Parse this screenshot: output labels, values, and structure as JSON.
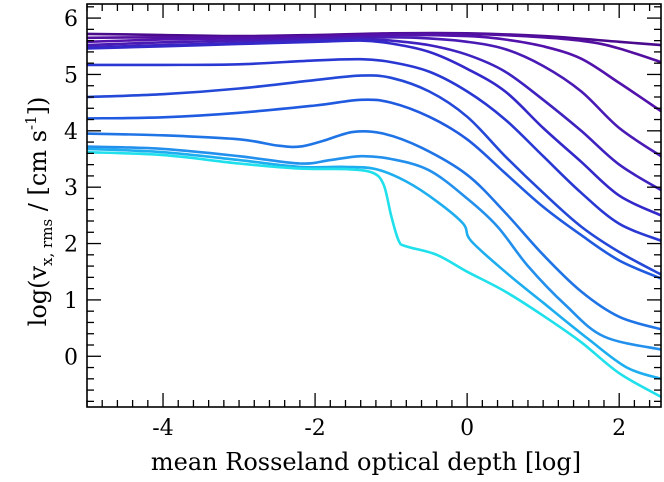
{
  "chart_data": {
    "type": "line",
    "xlabel": "mean Rosseland optical depth [log]",
    "ylabel": {
      "prefix": "log(v",
      "subscript": "x, rms",
      "middle": " / [cm s",
      "superscript": "-1",
      "suffix": "])"
    },
    "xlim": [
      -5,
      2.55
    ],
    "ylim": [
      -0.9,
      6.25
    ],
    "xticks": [
      -4,
      -2,
      0,
      2
    ],
    "yticks": [
      0,
      1,
      2,
      3,
      4,
      5,
      6
    ],
    "xtick_labels": [
      "-4",
      "-2",
      "0",
      "2"
    ],
    "ytick_labels": [
      "0",
      "1",
      "2",
      "3",
      "4",
      "5",
      "6"
    ],
    "x_minor_step": 0.2,
    "y_minor_step": 0.2,
    "grid": false,
    "series": [
      {
        "color": "#4a0a8e",
        "points": [
          [
            -5,
            5.72
          ],
          [
            -4,
            5.7
          ],
          [
            -3,
            5.68
          ],
          [
            -2,
            5.7
          ],
          [
            -1,
            5.73
          ],
          [
            0,
            5.73
          ],
          [
            1,
            5.68
          ],
          [
            2,
            5.58
          ],
          [
            2.55,
            5.52
          ]
        ]
      },
      {
        "color": "#530fa0",
        "points": [
          [
            -5,
            5.65
          ],
          [
            -4,
            5.66
          ],
          [
            -3,
            5.66
          ],
          [
            -2,
            5.68
          ],
          [
            -1,
            5.72
          ],
          [
            0,
            5.72
          ],
          [
            1,
            5.66
          ],
          [
            1.6,
            5.58
          ],
          [
            2,
            5.46
          ],
          [
            2.55,
            5.22
          ]
        ]
      },
      {
        "color": "#5212ab",
        "points": [
          [
            -5,
            5.58
          ],
          [
            -4,
            5.62
          ],
          [
            -3,
            5.64
          ],
          [
            -2,
            5.66
          ],
          [
            -1,
            5.7
          ],
          [
            0,
            5.68
          ],
          [
            0.5,
            5.62
          ],
          [
            1,
            5.5
          ],
          [
            1.5,
            5.28
          ],
          [
            2,
            4.85
          ],
          [
            2.55,
            4.35
          ]
        ]
      },
      {
        "color": "#4a1ab5",
        "points": [
          [
            -5,
            5.52
          ],
          [
            -4,
            5.57
          ],
          [
            -3,
            5.6
          ],
          [
            -2,
            5.63
          ],
          [
            -1,
            5.66
          ],
          [
            -0.5,
            5.64
          ],
          [
            0,
            5.58
          ],
          [
            0.5,
            5.45
          ],
          [
            1,
            5.15
          ],
          [
            1.5,
            4.7
          ],
          [
            2,
            4.05
          ],
          [
            2.55,
            3.55
          ]
        ]
      },
      {
        "color": "#3f22bf",
        "points": [
          [
            -5,
            5.48
          ],
          [
            -4,
            5.52
          ],
          [
            -3,
            5.56
          ],
          [
            -2,
            5.6
          ],
          [
            -1.4,
            5.62
          ],
          [
            -1,
            5.6
          ],
          [
            -0.5,
            5.52
          ],
          [
            0,
            5.35
          ],
          [
            0.5,
            5.05
          ],
          [
            1,
            4.55
          ],
          [
            1.5,
            4.0
          ],
          [
            2,
            3.4
          ],
          [
            2.55,
            2.95
          ]
        ]
      },
      {
        "color": "#3328c9",
        "points": [
          [
            -5,
            5.46
          ],
          [
            -4,
            5.5
          ],
          [
            -3,
            5.54
          ],
          [
            -2,
            5.58
          ],
          [
            -1.4,
            5.6
          ],
          [
            -1,
            5.55
          ],
          [
            -0.5,
            5.4
          ],
          [
            0,
            5.1
          ],
          [
            0.5,
            4.7
          ],
          [
            1,
            4.05
          ],
          [
            1.5,
            3.45
          ],
          [
            2,
            2.85
          ],
          [
            2.55,
            2.5
          ]
        ]
      },
      {
        "color": "#2a38d3",
        "points": [
          [
            -5,
            5.17
          ],
          [
            -4,
            5.17
          ],
          [
            -3,
            5.18
          ],
          [
            -2,
            5.25
          ],
          [
            -1.4,
            5.27
          ],
          [
            -1,
            5.22
          ],
          [
            -0.5,
            5.05
          ],
          [
            0,
            4.7
          ],
          [
            0.5,
            4.2
          ],
          [
            1,
            3.55
          ],
          [
            1.5,
            2.9
          ],
          [
            2,
            2.35
          ],
          [
            2.55,
            2.05
          ]
        ]
      },
      {
        "color": "#2448d8",
        "points": [
          [
            -5,
            4.6
          ],
          [
            -4,
            4.65
          ],
          [
            -3,
            4.75
          ],
          [
            -2,
            4.9
          ],
          [
            -1.4,
            4.98
          ],
          [
            -1,
            4.94
          ],
          [
            -0.5,
            4.7
          ],
          [
            0,
            4.25
          ],
          [
            0.5,
            3.55
          ],
          [
            1,
            2.9
          ],
          [
            1.5,
            2.3
          ],
          [
            2,
            1.85
          ],
          [
            2.55,
            1.45
          ]
        ]
      },
      {
        "color": "#1f5ae0",
        "points": [
          [
            -5,
            4.22
          ],
          [
            -4,
            4.24
          ],
          [
            -3,
            4.32
          ],
          [
            -2,
            4.45
          ],
          [
            -1.4,
            4.55
          ],
          [
            -1,
            4.5
          ],
          [
            -0.5,
            4.25
          ],
          [
            0,
            3.85
          ],
          [
            0.5,
            3.25
          ],
          [
            1,
            2.65
          ],
          [
            1.5,
            2.15
          ],
          [
            2,
            1.7
          ],
          [
            2.55,
            1.38
          ]
        ]
      },
      {
        "color": "#1f74e6",
        "points": [
          [
            -5,
            3.95
          ],
          [
            -4,
            3.92
          ],
          [
            -3,
            3.85
          ],
          [
            -2.5,
            3.74
          ],
          [
            -2.2,
            3.72
          ],
          [
            -1.9,
            3.82
          ],
          [
            -1.5,
            3.98
          ],
          [
            -1.1,
            3.95
          ],
          [
            -0.6,
            3.7
          ],
          [
            0,
            3.22
          ],
          [
            0.5,
            2.55
          ],
          [
            1,
            1.8
          ],
          [
            1.5,
            1.15
          ],
          [
            2,
            0.7
          ],
          [
            2.55,
            0.48
          ]
        ]
      },
      {
        "color": "#2290ec",
        "points": [
          [
            -5,
            3.72
          ],
          [
            -4,
            3.68
          ],
          [
            -3,
            3.55
          ],
          [
            -2.2,
            3.42
          ],
          [
            -1.8,
            3.48
          ],
          [
            -1.4,
            3.55
          ],
          [
            -1,
            3.5
          ],
          [
            -0.5,
            3.3
          ],
          [
            0,
            2.8
          ],
          [
            0.4,
            2.3
          ],
          [
            0.8,
            1.6
          ],
          [
            1.3,
            0.9
          ],
          [
            1.8,
            0.35
          ],
          [
            2.55,
            0.12
          ]
        ]
      },
      {
        "color": "#1eaef0",
        "points": [
          [
            -5,
            3.68
          ],
          [
            -4,
            3.62
          ],
          [
            -3,
            3.48
          ],
          [
            -2.2,
            3.36
          ],
          [
            -1.6,
            3.36
          ],
          [
            -1.2,
            3.32
          ],
          [
            -0.8,
            3.1
          ],
          [
            -0.4,
            2.75
          ],
          [
            -0.05,
            2.35
          ],
          [
            0.05,
            2.05
          ],
          [
            0.5,
            1.5
          ],
          [
            1,
            0.95
          ],
          [
            1.6,
            0.3
          ],
          [
            2.1,
            -0.2
          ],
          [
            2.55,
            -0.4
          ]
        ]
      },
      {
        "color": "#20e0ec",
        "points": [
          [
            -5,
            3.62
          ],
          [
            -4,
            3.57
          ],
          [
            -3,
            3.42
          ],
          [
            -2.2,
            3.33
          ],
          [
            -1.6,
            3.32
          ],
          [
            -1.25,
            3.26
          ],
          [
            -1.1,
            3.05
          ],
          [
            -1.0,
            2.5
          ],
          [
            -0.9,
            2.05
          ],
          [
            -0.8,
            1.95
          ],
          [
            -0.4,
            1.8
          ],
          [
            0,
            1.5
          ],
          [
            0.5,
            1.15
          ],
          [
            1,
            0.72
          ],
          [
            1.5,
            0.25
          ],
          [
            2,
            -0.3
          ],
          [
            2.55,
            -0.72
          ]
        ]
      }
    ]
  }
}
